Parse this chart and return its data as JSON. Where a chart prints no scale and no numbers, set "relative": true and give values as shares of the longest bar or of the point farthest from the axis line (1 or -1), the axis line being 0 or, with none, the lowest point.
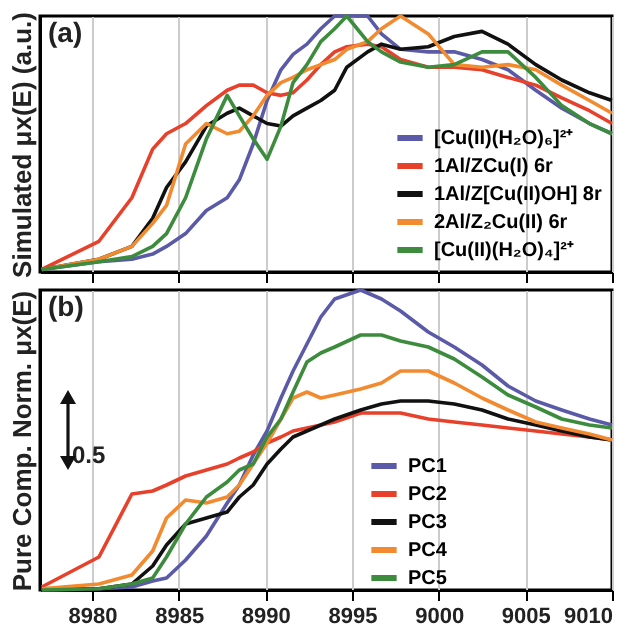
{
  "chart_data": [
    {
      "type": "line",
      "relative": true,
      "ylabel": "Simulated μx(E) (a.u.)",
      "annotations": [
        "(a)"
      ],
      "xlim": [
        8977,
        9010
      ],
      "xticks": [
        8980,
        8985,
        8990,
        8995,
        9000,
        9005,
        9010
      ],
      "grid": "x",
      "tick_labels": false,
      "legend": "bottom right",
      "x": [
        8977.1,
        8980.4,
        8982.3,
        8983.5,
        8984.3,
        8985.4,
        8986.6,
        8987.8,
        8988.5,
        8989.3,
        8990.1,
        8990.9,
        8991.6,
        8992.4,
        8993.2,
        8994.0,
        8994.7,
        8995.9,
        8996.7,
        8997.8,
        8999.4,
        9000.9,
        9002.5,
        9004.0,
        9005.6,
        9007.1,
        9008.7,
        9010.0
      ],
      "series": [
        {
          "name": "[Cu(II)(H₂O)₆]²⁺",
          "color": "#5a5aa8",
          "values": [
            0.01,
            0.04,
            0.05,
            0.07,
            0.1,
            0.15,
            0.24,
            0.29,
            0.36,
            0.5,
            0.67,
            0.79,
            0.85,
            0.89,
            0.95,
            1,
            1,
            1,
            0.93,
            0.87,
            0.86,
            0.86,
            0.83,
            0.79,
            0.71,
            0.64,
            0.58,
            0.54
          ]
        },
        {
          "name": "1Al/ZCu(I) 6r",
          "color": "#e8412b",
          "values": [
            0.01,
            0.12,
            0.29,
            0.48,
            0.54,
            0.58,
            0.65,
            0.71,
            0.73,
            0.73,
            0.7,
            0.69,
            0.7,
            0.75,
            0.81,
            0.86,
            0.88,
            0.89,
            0.88,
            0.83,
            0.8,
            0.8,
            0.79,
            0.76,
            0.73,
            0.68,
            0.63,
            0.58
          ]
        },
        {
          "name": "1Al/Z[Cu(II)OH] 8r",
          "color": "#111111",
          "values": [
            0.01,
            0.05,
            0.1,
            0.21,
            0.33,
            0.43,
            0.57,
            0.62,
            0.64,
            0.61,
            0.58,
            0.57,
            0.61,
            0.64,
            0.67,
            0.71,
            0.8,
            0.86,
            0.89,
            0.87,
            0.88,
            0.92,
            0.94,
            0.89,
            0.81,
            0.75,
            0.7,
            0.67
          ]
        },
        {
          "name": "2Al/Z₂Cu(II) 6r",
          "color": "#f28a30",
          "values": [
            0.01,
            0.05,
            0.1,
            0.19,
            0.26,
            0.5,
            0.58,
            0.54,
            0.55,
            0.61,
            0.69,
            0.74,
            0.76,
            0.79,
            0.81,
            0.83,
            0.87,
            0.9,
            0.95,
            1,
            0.93,
            0.81,
            0.8,
            0.81,
            0.79,
            0.73,
            0.67,
            0.62
          ]
        },
        {
          "name": "[Cu(II)(H₂O)₄]²⁺",
          "color": "#3d8c3e",
          "values": [
            0.01,
            0.04,
            0.06,
            0.1,
            0.15,
            0.29,
            0.52,
            0.69,
            0.61,
            0.52,
            0.44,
            0.57,
            0.74,
            0.81,
            0.9,
            0.95,
            1,
            0.9,
            0.86,
            0.82,
            0.8,
            0.81,
            0.86,
            0.86,
            0.76,
            0.65,
            0.58,
            0.54
          ]
        }
      ]
    },
    {
      "type": "line",
      "relative": true,
      "ylabel": "Pure Comp. Norm. μx(E)",
      "annotations": [
        "(b)",
        "0.5"
      ],
      "xlim": [
        8977,
        9010
      ],
      "xticks": [
        8980,
        8985,
        8990,
        8995,
        9000,
        9005,
        9010
      ],
      "grid": "x",
      "tick_labels": "x",
      "legend": "bottom",
      "x": [
        8977.1,
        8980.4,
        8982.3,
        8983.5,
        8984.3,
        8985.4,
        8986.6,
        8987.8,
        8988.5,
        8989.3,
        8990.1,
        8990.9,
        8991.6,
        8992.4,
        8993.2,
        8994.0,
        8995.5,
        8996.7,
        8997.8,
        8999.4,
        9000.9,
        9002.5,
        9004.0,
        9005.6,
        9007.1,
        9008.7,
        9010.0
      ],
      "series": [
        {
          "name": "PC1",
          "color": "#5a5aa8",
          "values": [
            0,
            0.004,
            0.01,
            0.03,
            0.04,
            0.1,
            0.18,
            0.29,
            0.35,
            0.45,
            0.53,
            0.64,
            0.73,
            0.82,
            0.91,
            0.97,
            1,
            0.97,
            0.93,
            0.86,
            0.81,
            0.75,
            0.68,
            0.63,
            0.6,
            0.57,
            0.55
          ]
        },
        {
          "name": "PC2",
          "color": "#e8412b",
          "values": [
            0.01,
            0.11,
            0.32,
            0.33,
            0.35,
            0.38,
            0.4,
            0.42,
            0.44,
            0.46,
            0.49,
            0.51,
            0.53,
            0.54,
            0.55,
            0.56,
            0.59,
            0.59,
            0.59,
            0.57,
            0.56,
            0.55,
            0.54,
            0.53,
            0.52,
            0.51,
            0.5
          ]
        },
        {
          "name": "PC3",
          "color": "#111111",
          "values": [
            0,
            0.004,
            0.02,
            0.08,
            0.15,
            0.22,
            0.24,
            0.26,
            0.31,
            0.35,
            0.42,
            0.47,
            0.51,
            0.53,
            0.55,
            0.57,
            0.6,
            0.62,
            0.63,
            0.63,
            0.62,
            0.6,
            0.57,
            0.55,
            0.53,
            0.51,
            0.5
          ]
        },
        {
          "name": "PC4",
          "color": "#f28a30",
          "values": [
            0.004,
            0.02,
            0.05,
            0.13,
            0.24,
            0.3,
            0.29,
            0.31,
            0.35,
            0.42,
            0.49,
            0.57,
            0.64,
            0.66,
            0.64,
            0.65,
            0.67,
            0.69,
            0.73,
            0.73,
            0.69,
            0.64,
            0.6,
            0.56,
            0.54,
            0.52,
            0.5
          ]
        },
        {
          "name": "PC5",
          "color": "#3d8c3e",
          "values": [
            0,
            0.004,
            0.02,
            0.04,
            0.11,
            0.22,
            0.31,
            0.36,
            0.4,
            0.42,
            0.51,
            0.57,
            0.66,
            0.76,
            0.79,
            0.81,
            0.85,
            0.85,
            0.83,
            0.81,
            0.77,
            0.71,
            0.65,
            0.61,
            0.57,
            0.55,
            0.54
          ]
        }
      ]
    }
  ]
}
